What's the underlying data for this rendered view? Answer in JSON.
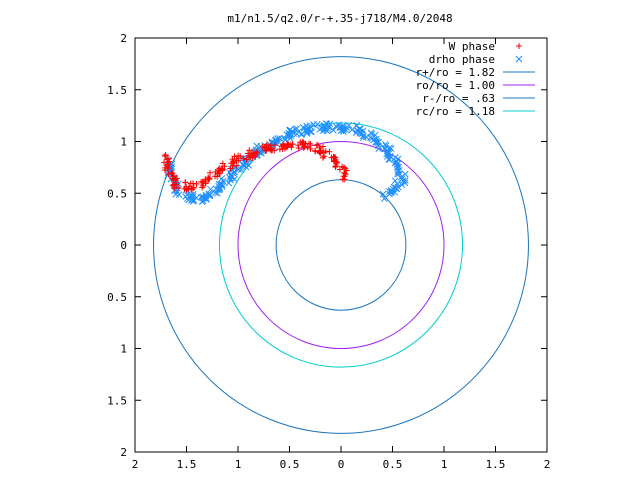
{
  "chart_data": {
    "type": "scatter",
    "title": "m1/n1.5/q2.0/r-+.35-j718/M4.0/2048",
    "xlabel": "",
    "ylabel": "",
    "xlim": [
      2,
      -2
    ],
    "ylim": [
      -2,
      2
    ],
    "x_ticks": [
      2,
      1.5,
      1,
      0.5,
      0,
      0.5,
      1,
      1.5,
      2
    ],
    "x_tick_values": [
      -2,
      -1.5,
      -1,
      -0.5,
      0,
      0.5,
      1,
      1.5,
      2
    ],
    "y_ticks": [
      2,
      1.5,
      1,
      0.5,
      0,
      0.5,
      1,
      1.5,
      2
    ],
    "y_tick_values": [
      2,
      1.5,
      1,
      0.5,
      0,
      -0.5,
      -1,
      -1.5,
      -2
    ],
    "grid": false,
    "legend_position": "top-right",
    "circles": [
      {
        "name": "r+/ro = 1.82",
        "radius": 1.82,
        "color": "#1b75bb"
      },
      {
        "name": "ro/ro = 1.00",
        "radius": 1.0,
        "color": "#a020f0"
      },
      {
        "name": "r-/ro = .63",
        "radius": 0.63,
        "color": "#1b75bb"
      },
      {
        "name": "rc/ro = 1.18",
        "radius": 1.18,
        "color": "#00cccc"
      }
    ],
    "series": [
      {
        "name": "W phase",
        "marker": "+",
        "color": "#ff0000",
        "points": [
          [
            1.69,
            0.84
          ],
          [
            1.67,
            0.74
          ],
          [
            1.63,
            0.64
          ],
          [
            1.57,
            0.57
          ],
          [
            1.5,
            0.54
          ],
          [
            1.43,
            0.54
          ],
          [
            1.36,
            0.56
          ],
          [
            1.28,
            0.6
          ],
          [
            1.21,
            0.65
          ],
          [
            1.13,
            0.71
          ],
          [
            1.05,
            0.76
          ],
          [
            0.96,
            0.81
          ],
          [
            0.86,
            0.85
          ],
          [
            0.76,
            0.89
          ],
          [
            0.65,
            0.92
          ],
          [
            0.54,
            0.94
          ],
          [
            0.43,
            0.95
          ],
          [
            0.33,
            0.94
          ],
          [
            0.24,
            0.92
          ],
          [
            0.16,
            0.88
          ],
          [
            0.09,
            0.84
          ],
          [
            0.03,
            0.79
          ],
          [
            -0.01,
            0.74
          ],
          [
            -0.05,
            0.68
          ],
          [
            -0.07,
            0.63
          ]
        ]
      },
      {
        "name": "drho phase",
        "marker": "x",
        "color": "#1e90ff",
        "points": [
          [
            1.66,
            0.79
          ],
          [
            1.64,
            0.68
          ],
          [
            1.6,
            0.57
          ],
          [
            1.53,
            0.49
          ],
          [
            1.44,
            0.43
          ],
          [
            1.35,
            0.42
          ],
          [
            1.26,
            0.45
          ],
          [
            1.18,
            0.51
          ],
          [
            1.1,
            0.59
          ],
          [
            1.02,
            0.67
          ],
          [
            0.94,
            0.75
          ],
          [
            0.85,
            0.83
          ],
          [
            0.76,
            0.9
          ],
          [
            0.66,
            0.96
          ],
          [
            0.56,
            1.01
          ],
          [
            0.45,
            1.06
          ],
          [
            0.34,
            1.09
          ],
          [
            0.23,
            1.11
          ],
          [
            0.12,
            1.12
          ],
          [
            0.02,
            1.12
          ],
          [
            -0.09,
            1.11
          ],
          [
            -0.2,
            1.08
          ],
          [
            -0.3,
            1.03
          ],
          [
            -0.39,
            0.97
          ],
          [
            -0.46,
            0.9
          ],
          [
            -0.52,
            0.82
          ],
          [
            -0.57,
            0.74
          ],
          [
            -0.6,
            0.66
          ],
          [
            -0.61,
            0.6
          ],
          [
            -0.57,
            0.55
          ],
          [
            -0.51,
            0.5
          ],
          [
            -0.45,
            0.46
          ]
        ]
      }
    ]
  }
}
